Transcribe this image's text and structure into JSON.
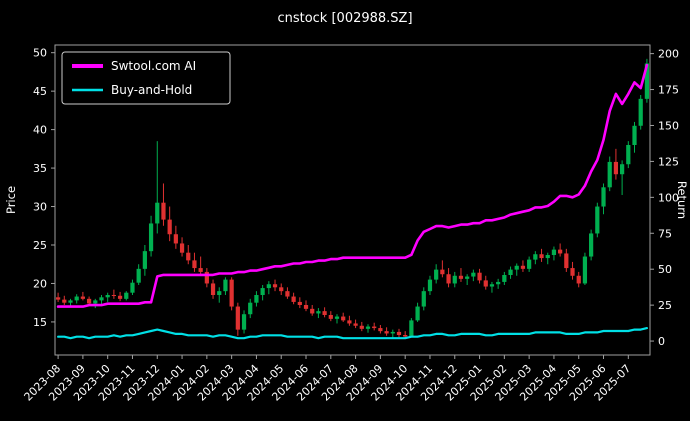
{
  "window": {
    "title": "cnstock [002988.SZ]"
  },
  "legend": {
    "items": [
      {
        "label": "Swtool.com AI",
        "color": "#ff00ff"
      },
      {
        "label": "Buy-and-Hold",
        "color": "#00e0e6"
      }
    ]
  },
  "chart_data": {
    "type": "candlestick+line",
    "title": "cnstock [002988.SZ]",
    "left_axis": {
      "label": "Price",
      "ticks": [
        15,
        20,
        25,
        30,
        35,
        40,
        45,
        50
      ],
      "domain": [
        10.7,
        51.0
      ]
    },
    "right_axis": {
      "label": "Return",
      "ticks": [
        0,
        25,
        50,
        75,
        100,
        125,
        150,
        175,
        200
      ],
      "domain": [
        -9.7,
        206.0
      ]
    },
    "x_ticks": [
      "2023-08",
      "2023-09",
      "2023-10",
      "2023-11",
      "2023-12",
      "2024-01",
      "2024-02",
      "2024-03",
      "2024-04",
      "2024-05",
      "2024-06",
      "2024-07",
      "2024-08",
      "2024-09",
      "2024-10",
      "2024-11",
      "2024-12",
      "2025-01",
      "2025-02",
      "2025-03",
      "2025-04",
      "2025-05",
      "2025-06",
      "2025-07"
    ],
    "candles_per_month": 4,
    "grid": false,
    "legend_position": "top-left",
    "colors": {
      "up": "#00b050",
      "down": "#e03131",
      "background": "#000000",
      "text": "#ffffff",
      "spine": "#a0a0a0"
    },
    "ohlc": [
      [
        18.2,
        18.8,
        17.6,
        17.9
      ],
      [
        17.9,
        18.4,
        17.2,
        17.5
      ],
      [
        17.5,
        18.0,
        16.9,
        17.8
      ],
      [
        17.8,
        18.6,
        17.4,
        18.3
      ],
      [
        18.3,
        18.9,
        17.8,
        18.0
      ],
      [
        18.0,
        18.3,
        17.2,
        17.4
      ],
      [
        17.4,
        18.0,
        16.8,
        17.8
      ],
      [
        17.8,
        18.5,
        17.3,
        18.2
      ],
      [
        18.2,
        18.8,
        17.6,
        18.5
      ],
      [
        18.5,
        19.2,
        18.0,
        18.4
      ],
      [
        18.4,
        18.9,
        17.7,
        18.0
      ],
      [
        18.0,
        19.0,
        17.8,
        18.8
      ],
      [
        18.8,
        20.5,
        18.5,
        20.1
      ],
      [
        20.1,
        22.5,
        19.8,
        21.9
      ],
      [
        21.9,
        25.0,
        21.0,
        24.2
      ],
      [
        24.2,
        28.8,
        23.5,
        27.8
      ],
      [
        27.8,
        38.5,
        26.5,
        30.5
      ],
      [
        30.5,
        33.0,
        27.5,
        28.3
      ],
      [
        28.3,
        30.0,
        25.5,
        26.4
      ],
      [
        26.4,
        27.5,
        24.5,
        25.2
      ],
      [
        25.2,
        26.0,
        23.5,
        24.0
      ],
      [
        24.0,
        25.0,
        22.5,
        23.0
      ],
      [
        23.0,
        24.0,
        21.5,
        22.0
      ],
      [
        22.0,
        23.5,
        21.0,
        21.5
      ],
      [
        21.5,
        22.0,
        19.5,
        20.0
      ],
      [
        20.0,
        20.5,
        18.0,
        18.5
      ],
      [
        18.5,
        19.5,
        17.5,
        19.0
      ],
      [
        19.0,
        20.8,
        18.5,
        20.5
      ],
      [
        20.5,
        20.8,
        16.5,
        17.0
      ],
      [
        17.0,
        17.5,
        13.2,
        14.0
      ],
      [
        14.0,
        16.5,
        13.5,
        16.0
      ],
      [
        16.0,
        18.0,
        15.5,
        17.5
      ],
      [
        17.5,
        19.0,
        17.0,
        18.5
      ],
      [
        18.5,
        19.8,
        17.8,
        19.4
      ],
      [
        19.4,
        20.3,
        18.6,
        19.9
      ],
      [
        19.9,
        20.5,
        19.0,
        19.5
      ],
      [
        19.5,
        20.0,
        18.5,
        19.0
      ],
      [
        19.0,
        19.5,
        18.0,
        18.3
      ],
      [
        18.3,
        18.8,
        17.3,
        17.6
      ],
      [
        17.6,
        18.2,
        16.8,
        17.2
      ],
      [
        17.2,
        17.8,
        16.4,
        16.7
      ],
      [
        16.7,
        17.2,
        15.8,
        16.1
      ],
      [
        16.1,
        16.8,
        15.5,
        16.4
      ],
      [
        16.4,
        16.9,
        15.6,
        15.9
      ],
      [
        15.9,
        16.4,
        15.1,
        15.4
      ],
      [
        15.4,
        16.0,
        14.8,
        15.7
      ],
      [
        15.7,
        16.2,
        15.0,
        15.2
      ],
      [
        15.2,
        15.8,
        14.5,
        14.8
      ],
      [
        14.8,
        15.3,
        14.2,
        14.5
      ],
      [
        14.5,
        15.0,
        13.8,
        14.1
      ],
      [
        14.1,
        14.7,
        13.6,
        14.4
      ],
      [
        14.4,
        14.9,
        13.9,
        14.2
      ],
      [
        14.2,
        14.6,
        13.5,
        13.8
      ],
      [
        13.8,
        14.3,
        13.2,
        13.5
      ],
      [
        13.5,
        14.0,
        12.9,
        13.7
      ],
      [
        13.7,
        14.1,
        13.0,
        13.3
      ],
      [
        13.3,
        13.8,
        12.8,
        13.1
      ],
      [
        13.1,
        15.5,
        13.0,
        15.2
      ],
      [
        15.2,
        17.5,
        15.0,
        17.0
      ],
      [
        17.0,
        19.5,
        16.5,
        19.0
      ],
      [
        19.0,
        21.0,
        18.5,
        20.5
      ],
      [
        20.5,
        22.5,
        20.0,
        21.8
      ],
      [
        21.8,
        23.0,
        20.8,
        21.2
      ],
      [
        21.2,
        22.0,
        19.5,
        20.0
      ],
      [
        20.0,
        21.5,
        19.5,
        21.0
      ],
      [
        21.0,
        22.0,
        20.2,
        20.6
      ],
      [
        20.6,
        21.2,
        19.8,
        20.9
      ],
      [
        20.9,
        21.8,
        20.3,
        21.4
      ],
      [
        21.4,
        21.9,
        20.0,
        20.4
      ],
      [
        20.4,
        21.0,
        19.2,
        19.6
      ],
      [
        19.6,
        20.2,
        18.8,
        19.9
      ],
      [
        19.9,
        20.6,
        19.3,
        20.2
      ],
      [
        20.2,
        21.5,
        19.8,
        21.1
      ],
      [
        21.1,
        22.2,
        20.6,
        21.8
      ],
      [
        21.8,
        22.6,
        21.0,
        22.3
      ],
      [
        22.3,
        23.0,
        21.5,
        21.9
      ],
      [
        21.9,
        23.5,
        21.5,
        23.1
      ],
      [
        23.1,
        24.2,
        22.5,
        23.8
      ],
      [
        23.8,
        24.5,
        22.8,
        23.3
      ],
      [
        23.3,
        24.0,
        22.5,
        23.7
      ],
      [
        23.7,
        24.8,
        23.0,
        24.4
      ],
      [
        24.4,
        25.2,
        23.5,
        23.9
      ],
      [
        23.9,
        24.5,
        21.5,
        22.0
      ],
      [
        22.0,
        22.8,
        20.5,
        21.0
      ],
      [
        21.0,
        21.5,
        19.5,
        20.0
      ],
      [
        20.0,
        24.0,
        19.8,
        23.5
      ],
      [
        23.5,
        27.0,
        23.0,
        26.5
      ],
      [
        26.5,
        30.5,
        26.0,
        30.0
      ],
      [
        30.0,
        33.0,
        29.0,
        32.5
      ],
      [
        32.5,
        36.5,
        32.0,
        35.8
      ],
      [
        35.8,
        37.5,
        33.5,
        34.2
      ],
      [
        34.2,
        36.0,
        31.5,
        35.5
      ],
      [
        35.5,
        38.5,
        35.0,
        38.0
      ],
      [
        38.0,
        41.0,
        37.0,
        40.5
      ],
      [
        40.5,
        44.5,
        40.0,
        44.0
      ],
      [
        44.0,
        49.2,
        43.5,
        48.6
      ]
    ],
    "series": [
      {
        "name": "Swtool.com AI",
        "color": "#ff00ff",
        "axis": "right",
        "linewidth": 2.6,
        "values": [
          24,
          24,
          24,
          24,
          24,
          25,
          25,
          25,
          26,
          26,
          26,
          26,
          26,
          26,
          27,
          27,
          45,
          46,
          46,
          46,
          46,
          46,
          46,
          46,
          46,
          46,
          47,
          47,
          47,
          48,
          48,
          49,
          49,
          50,
          51,
          52,
          52,
          53,
          54,
          54,
          55,
          55,
          56,
          56,
          57,
          57,
          58,
          58,
          58,
          58,
          58,
          58,
          58,
          58,
          58,
          58,
          58,
          60,
          70,
          76,
          78,
          80,
          80,
          79,
          80,
          81,
          81,
          82,
          82,
          84,
          84,
          85,
          86,
          88,
          89,
          90,
          91,
          93,
          93,
          94,
          97,
          101,
          101,
          100,
          102,
          108,
          118,
          126,
          140,
          160,
          172,
          165,
          172,
          180,
          176,
          192
        ]
      },
      {
        "name": "Buy-and-Hold",
        "color": "#00e0e6",
        "axis": "right",
        "linewidth": 2.2,
        "values": [
          3,
          3,
          2,
          3,
          3,
          2,
          3,
          3,
          3,
          4,
          3,
          4,
          4,
          5,
          6,
          7,
          8,
          7,
          6,
          5,
          5,
          4,
          4,
          4,
          4,
          3,
          4,
          4,
          3,
          2,
          2,
          3,
          3,
          4,
          4,
          4,
          4,
          3,
          3,
          3,
          3,
          3,
          2,
          3,
          3,
          3,
          2,
          2,
          2,
          2,
          2,
          2,
          2,
          2,
          2,
          2,
          2,
          3,
          3,
          4,
          4,
          5,
          5,
          4,
          4,
          5,
          5,
          5,
          5,
          4,
          4,
          5,
          5,
          5,
          5,
          5,
          5,
          6,
          6,
          6,
          6,
          6,
          5,
          5,
          5,
          6,
          6,
          6,
          7,
          7,
          7,
          7,
          7,
          8,
          8,
          9
        ]
      }
    ]
  }
}
